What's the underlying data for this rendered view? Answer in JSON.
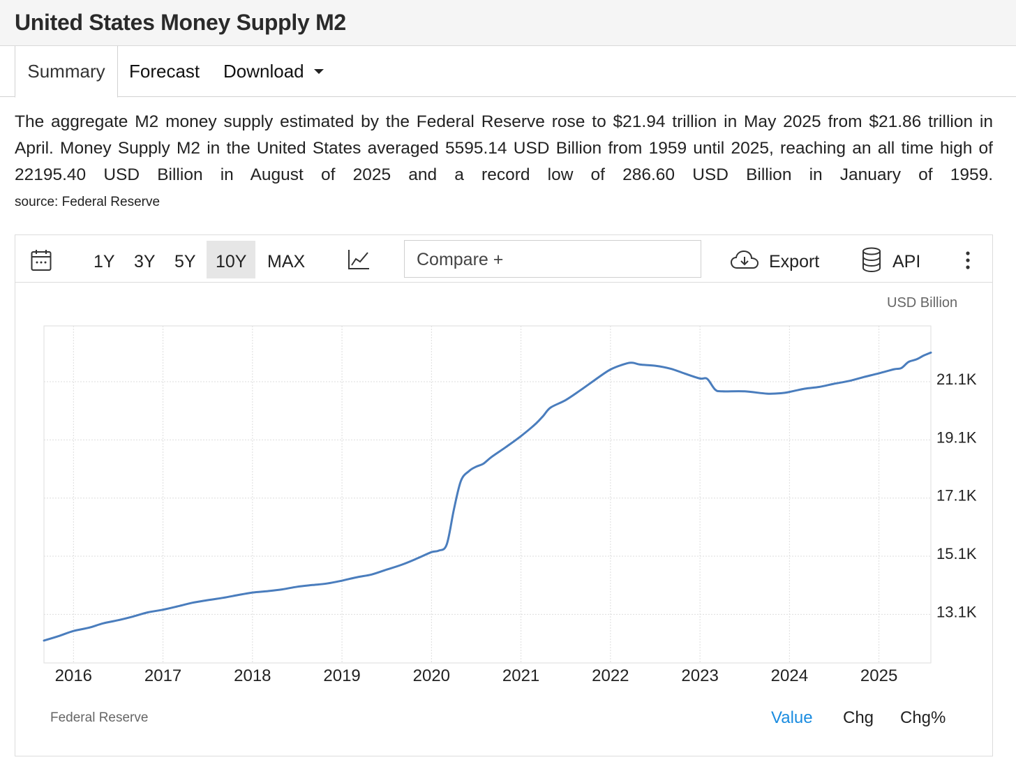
{
  "page": {
    "title": "United States Money Supply M2",
    "tabs": [
      {
        "label": "Summary"
      },
      {
        "label": "Forecast"
      },
      {
        "label": "Download"
      }
    ],
    "description": "The aggregate M2 money supply estimated by the Federal Reserve rose to $21.94 trillion in May 2025 from $21.86 trillion in April. Money Supply M2 in the United States averaged 5595.14 USD Billion from 1959 until 2025, reaching an all time high of 22195.40 USD Billion in August of 2025 and a record low of 286.60 USD Billion in January of 1959.",
    "source": "source: Federal Reserve"
  },
  "toolbar": {
    "ranges": [
      "1Y",
      "3Y",
      "5Y",
      "10Y",
      "MAX"
    ],
    "selected_range": "10Y",
    "compare_label": "Compare +",
    "export_label": "Export",
    "api_label": "API"
  },
  "footer": {
    "source_label": "Federal Reserve",
    "buttons": [
      "Value",
      "Chg",
      "Chg%"
    ],
    "active_button": "Value"
  },
  "colors": {
    "line": "#4a7dbd",
    "active_tab_text": "#1a8ce0",
    "grid": "#dddddd"
  },
  "chart_data": {
    "type": "line",
    "title": "United States Money Supply M2",
    "unit_label": "USD Billion",
    "x_tick_labels": [
      "2016",
      "2017",
      "2018",
      "2019",
      "2020",
      "2021",
      "2022",
      "2023",
      "2024",
      "2025"
    ],
    "x_range": [
      2015.67,
      2025.58
    ],
    "y_range": [
      11430,
      23020
    ],
    "y_ticks": [
      13100,
      15100,
      17100,
      19100,
      21100
    ],
    "y_tick_labels": [
      "13.1K",
      "15.1K",
      "17.1K",
      "19.1K",
      "21.1K"
    ],
    "grid": true,
    "series": [
      {
        "name": "Money Supply M2",
        "points": [
          [
            2015.67,
            12200
          ],
          [
            2015.83,
            12350
          ],
          [
            2016.0,
            12530
          ],
          [
            2016.17,
            12640
          ],
          [
            2016.33,
            12790
          ],
          [
            2016.5,
            12900
          ],
          [
            2016.67,
            13030
          ],
          [
            2016.83,
            13170
          ],
          [
            2017.0,
            13260
          ],
          [
            2017.17,
            13380
          ],
          [
            2017.33,
            13500
          ],
          [
            2017.5,
            13590
          ],
          [
            2017.67,
            13670
          ],
          [
            2017.83,
            13760
          ],
          [
            2018.0,
            13850
          ],
          [
            2018.17,
            13900
          ],
          [
            2018.33,
            13960
          ],
          [
            2018.5,
            14050
          ],
          [
            2018.67,
            14110
          ],
          [
            2018.83,
            14160
          ],
          [
            2019.0,
            14260
          ],
          [
            2019.17,
            14380
          ],
          [
            2019.33,
            14470
          ],
          [
            2019.5,
            14640
          ],
          [
            2019.67,
            14810
          ],
          [
            2019.83,
            15010
          ],
          [
            2020.0,
            15240
          ],
          [
            2020.08,
            15290
          ],
          [
            2020.17,
            15500
          ],
          [
            2020.25,
            16700
          ],
          [
            2020.33,
            17700
          ],
          [
            2020.42,
            18030
          ],
          [
            2020.5,
            18180
          ],
          [
            2020.58,
            18280
          ],
          [
            2020.67,
            18510
          ],
          [
            2020.83,
            18850
          ],
          [
            2021.0,
            19230
          ],
          [
            2021.17,
            19670
          ],
          [
            2021.25,
            19930
          ],
          [
            2021.33,
            20210
          ],
          [
            2021.5,
            20470
          ],
          [
            2021.67,
            20820
          ],
          [
            2021.83,
            21170
          ],
          [
            2022.0,
            21520
          ],
          [
            2022.17,
            21720
          ],
          [
            2022.25,
            21750
          ],
          [
            2022.33,
            21690
          ],
          [
            2022.5,
            21650
          ],
          [
            2022.67,
            21550
          ],
          [
            2022.83,
            21380
          ],
          [
            2023.0,
            21210
          ],
          [
            2023.08,
            21200
          ],
          [
            2023.17,
            20830
          ],
          [
            2023.25,
            20770
          ],
          [
            2023.5,
            20770
          ],
          [
            2023.75,
            20690
          ],
          [
            2023.92,
            20710
          ],
          [
            2024.0,
            20750
          ],
          [
            2024.17,
            20860
          ],
          [
            2024.33,
            20920
          ],
          [
            2024.5,
            21030
          ],
          [
            2024.67,
            21130
          ],
          [
            2024.83,
            21260
          ],
          [
            2025.0,
            21390
          ],
          [
            2025.17,
            21530
          ],
          [
            2025.25,
            21570
          ],
          [
            2025.33,
            21780
          ],
          [
            2025.42,
            21870
          ],
          [
            2025.5,
            22000
          ],
          [
            2025.58,
            22100
          ]
        ]
      }
    ]
  }
}
